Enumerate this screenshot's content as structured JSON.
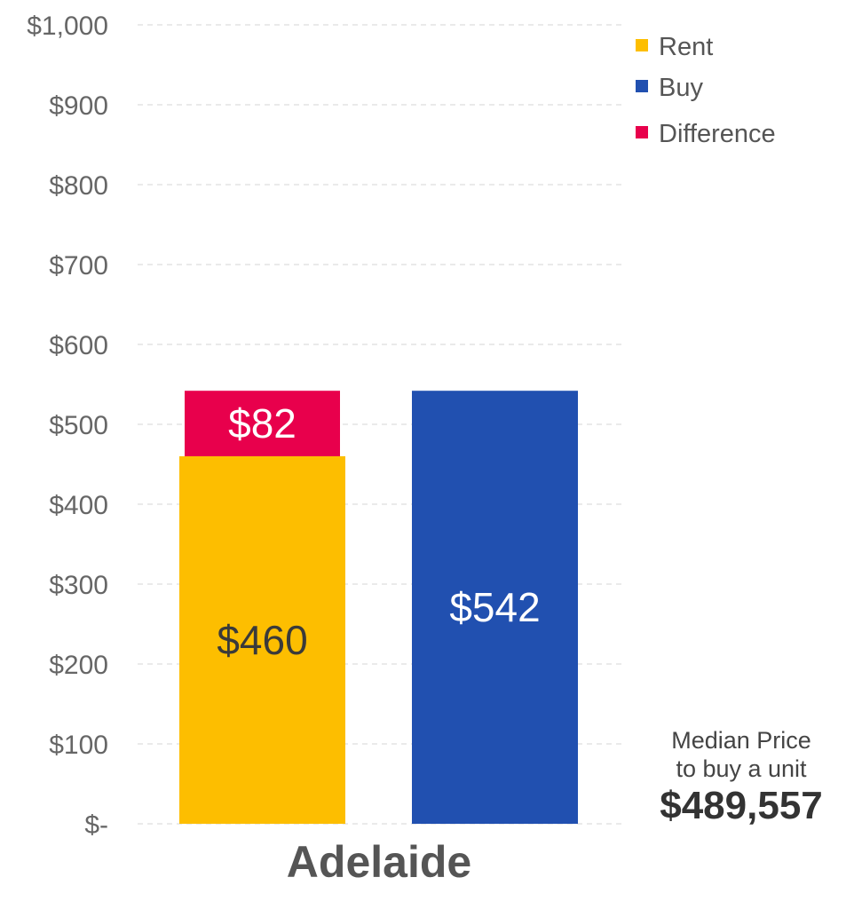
{
  "chart_data": {
    "type": "bar",
    "categories": [
      "Adelaide"
    ],
    "series": [
      {
        "name": "Rent",
        "values": [
          460
        ],
        "color": "#FDBE00",
        "label": "$460",
        "label_color": "#3a3a3a"
      },
      {
        "name": "Difference",
        "values": [
          82
        ],
        "color": "#E8004C",
        "label": "$82",
        "label_color": "#ffffff"
      },
      {
        "name": "Buy",
        "values": [
          542
        ],
        "color": "#2150B0",
        "label": "$542",
        "label_color": "#ffffff"
      }
    ],
    "ylim": [
      0,
      1000
    ],
    "y_ticks": [
      0,
      100,
      200,
      300,
      400,
      500,
      600,
      700,
      800,
      900,
      1000
    ],
    "y_tick_labels": [
      "$-",
      "$100",
      "$200",
      "$300",
      "$400",
      "$500",
      "$600",
      "$700",
      "$800",
      "$900",
      "$1,000"
    ],
    "grid": true,
    "legend": {
      "position": "top-right",
      "entries": [
        {
          "name": "Rent",
          "color": "#FDBE00"
        },
        {
          "name": "Buy",
          "color": "#2150B0"
        },
        {
          "name": "Difference",
          "color": "#E8004C"
        }
      ]
    },
    "xlabel": "",
    "ylabel": "",
    "title": ""
  },
  "annotation": {
    "line1": "Median Price",
    "line2": "to buy a unit",
    "value": "$489,557"
  }
}
